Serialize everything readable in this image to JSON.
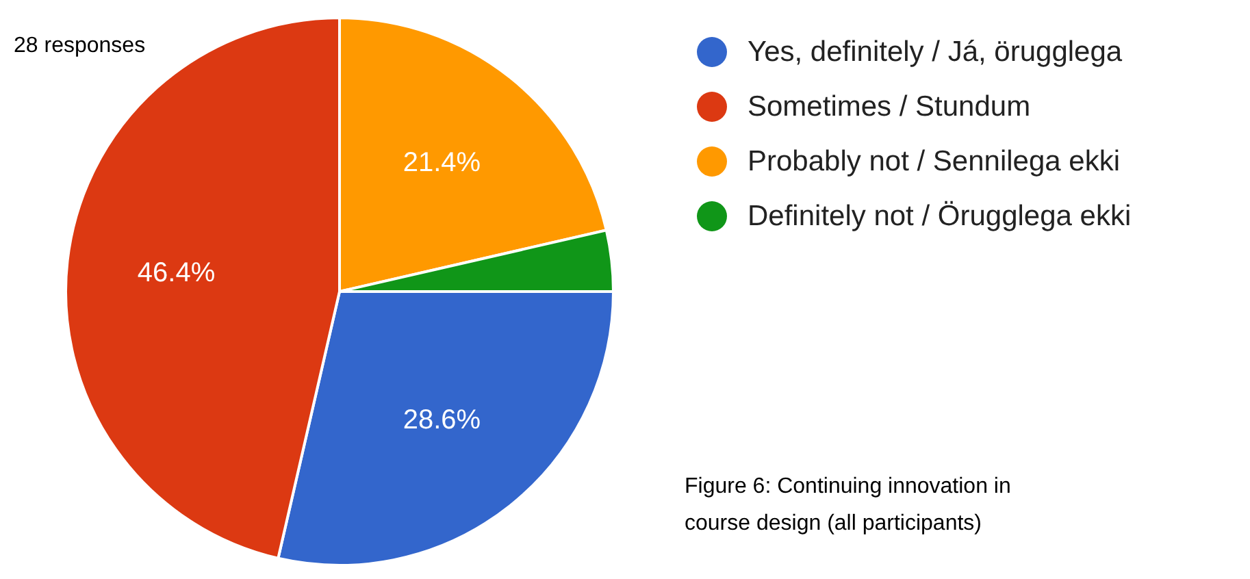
{
  "chart_data": {
    "type": "pie",
    "categories": [
      "Yes, definitely / Já, örugglega",
      "Sometimes / Stundum",
      "Probably not / Sennilega ekki",
      "Definitely not / Örugglega ekki"
    ],
    "values": [
      28.6,
      46.4,
      21.4,
      3.6
    ],
    "colors": [
      "#3366cc",
      "#dc3912",
      "#ff9900",
      "#109618"
    ],
    "value_labels": [
      "28.6%",
      "46.4%",
      "21.4%",
      null
    ],
    "legend": "right",
    "annotations": [
      "28 responses",
      "Figure 6: Continuing innovation in course design (all participants)"
    ]
  }
}
